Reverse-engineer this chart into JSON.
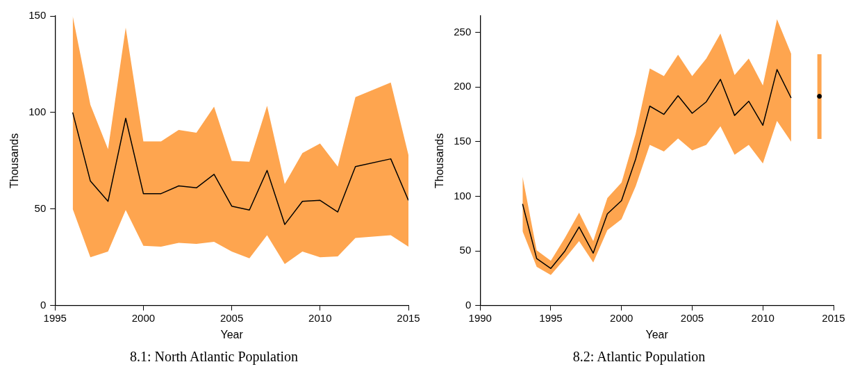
{
  "chart_data": [
    {
      "type": "line",
      "title": "8.1: North Atlantic Population",
      "xlabel": "Year",
      "ylabel": "Thousands",
      "xlim": [
        1995,
        2015
      ],
      "xticks": [
        1995,
        2000,
        2005,
        2010,
        2015
      ],
      "ylim": [
        0,
        150
      ],
      "yticks": [
        0,
        50,
        100,
        150
      ],
      "grid": false,
      "legend": false,
      "series": [
        {
          "color": "#000000",
          "marker": "none",
          "x": [
            1996,
            1997,
            1998,
            1999,
            2000,
            2001,
            2002,
            2003,
            2004,
            2005,
            2006,
            2007,
            2008,
            2009,
            2010,
            2011,
            2012,
            2014,
            2015
          ],
          "values": [
            100,
            64.5,
            54,
            97,
            58,
            58,
            62,
            61,
            68,
            51.5,
            49.5,
            70,
            42,
            54,
            54.5,
            48.5,
            72,
            76,
            54.5
          ],
          "lower": [
            50,
            25,
            28,
            49.5,
            31,
            30.5,
            32.5,
            32,
            33,
            28,
            24.5,
            36.5,
            21.5,
            28,
            25,
            25.5,
            35,
            36.5,
            30.5
          ],
          "upper": [
            150,
            104,
            81,
            144,
            85,
            85,
            91,
            89.5,
            103,
            75,
            74.5,
            103.5,
            63,
            79,
            84,
            72,
            108,
            115.5,
            78
          ]
        }
      ]
    },
    {
      "type": "line",
      "title": "8.2: Atlantic Population",
      "xlabel": "Year",
      "ylabel": "Thousands",
      "xlim": [
        1990,
        2015
      ],
      "xticks": [
        1990,
        1995,
        2000,
        2005,
        2010,
        2015
      ],
      "ylim": [
        0,
        265
      ],
      "yticks": [
        0,
        50,
        100,
        150,
        200,
        250
      ],
      "grid": false,
      "legend": false,
      "series": [
        {
          "color": "#000000",
          "marker": "none",
          "x": [
            1993,
            1994,
            1995,
            1996,
            1997,
            1998,
            1999,
            2000,
            2001,
            2002,
            2003,
            2004,
            2005,
            2006,
            2007,
            2008,
            2009,
            2010,
            2011,
            2012
          ],
          "values": [
            93,
            43,
            34,
            50,
            72,
            48,
            84,
            96,
            134,
            182.5,
            175,
            192,
            176,
            186.5,
            207,
            174,
            187,
            165,
            216,
            190
          ],
          "lower": [
            68,
            35.5,
            28,
            43,
            59,
            39.5,
            69,
            79,
            109,
            147,
            141,
            153,
            142,
            147,
            164,
            138,
            147,
            130,
            169,
            150
          ],
          "upper": [
            118,
            50.5,
            41,
            62,
            85,
            59,
            98.5,
            112.5,
            157,
            217,
            210,
            229.5,
            210,
            226,
            249,
            211,
            226,
            201.5,
            262,
            230.5
          ]
        },
        {
          "type": "scatter",
          "color": "#000000",
          "marker": "circle",
          "x": [
            2014
          ],
          "values": [
            191.5
          ],
          "errors": [
            [
              152.5,
              230
            ]
          ]
        }
      ]
    }
  ]
}
